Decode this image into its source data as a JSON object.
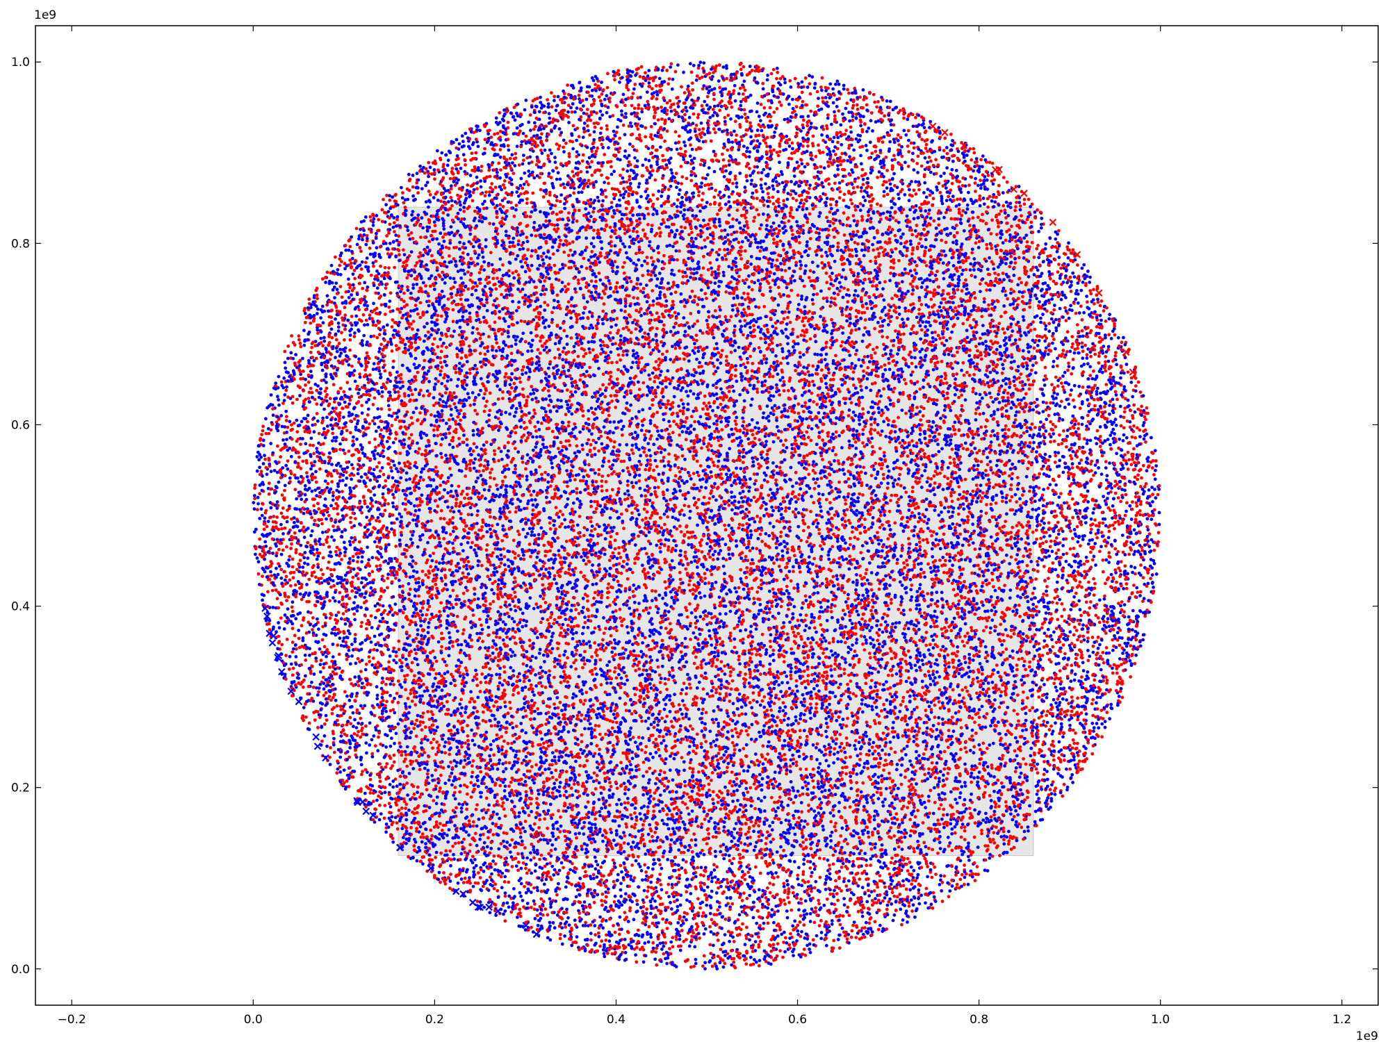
{
  "chart_data": {
    "type": "scatter",
    "title": "",
    "xlabel": "",
    "ylabel": "",
    "xlim": [
      -0.24,
      1.24
    ],
    "ylim": [
      -0.04,
      1.04
    ],
    "x_offset_label": "1e9",
    "y_offset_label": "1e9",
    "x_ticks": [
      -0.2,
      0.0,
      0.2,
      0.4,
      0.6,
      0.8,
      1.0,
      1.2
    ],
    "x_tick_labels": [
      "−0.2",
      "0.0",
      "0.2",
      "0.4",
      "0.6",
      "0.8",
      "1.0",
      "1.2"
    ],
    "y_ticks": [
      0.0,
      0.2,
      0.4,
      0.6,
      0.8,
      1.0
    ],
    "y_tick_labels": [
      "0.0",
      "0.2",
      "0.4",
      "0.6",
      "0.8",
      "1.0"
    ],
    "grid": false,
    "legend": "none",
    "background_region": {
      "x": [
        0.16,
        0.86
      ],
      "y": [
        0.125,
        0.84
      ],
      "color": "#e6e6e6"
    },
    "disk": {
      "center": [
        0.5,
        0.5
      ],
      "radius": 0.5
    },
    "series": [
      {
        "color": "#ff0000",
        "marker": "dot",
        "approx_count": 15000
      },
      {
        "color": "#0000ff",
        "marker": "dot",
        "approx_count": 15000
      }
    ],
    "edge_markers": [
      {
        "color": "#0000ff",
        "marker": "x",
        "arc_deg": [
          190,
          260
        ],
        "approx_count": 30
      },
      {
        "color": "#ff0000",
        "marker": "x",
        "arc_deg": [
          10,
          60
        ],
        "approx_count": 12
      }
    ]
  }
}
